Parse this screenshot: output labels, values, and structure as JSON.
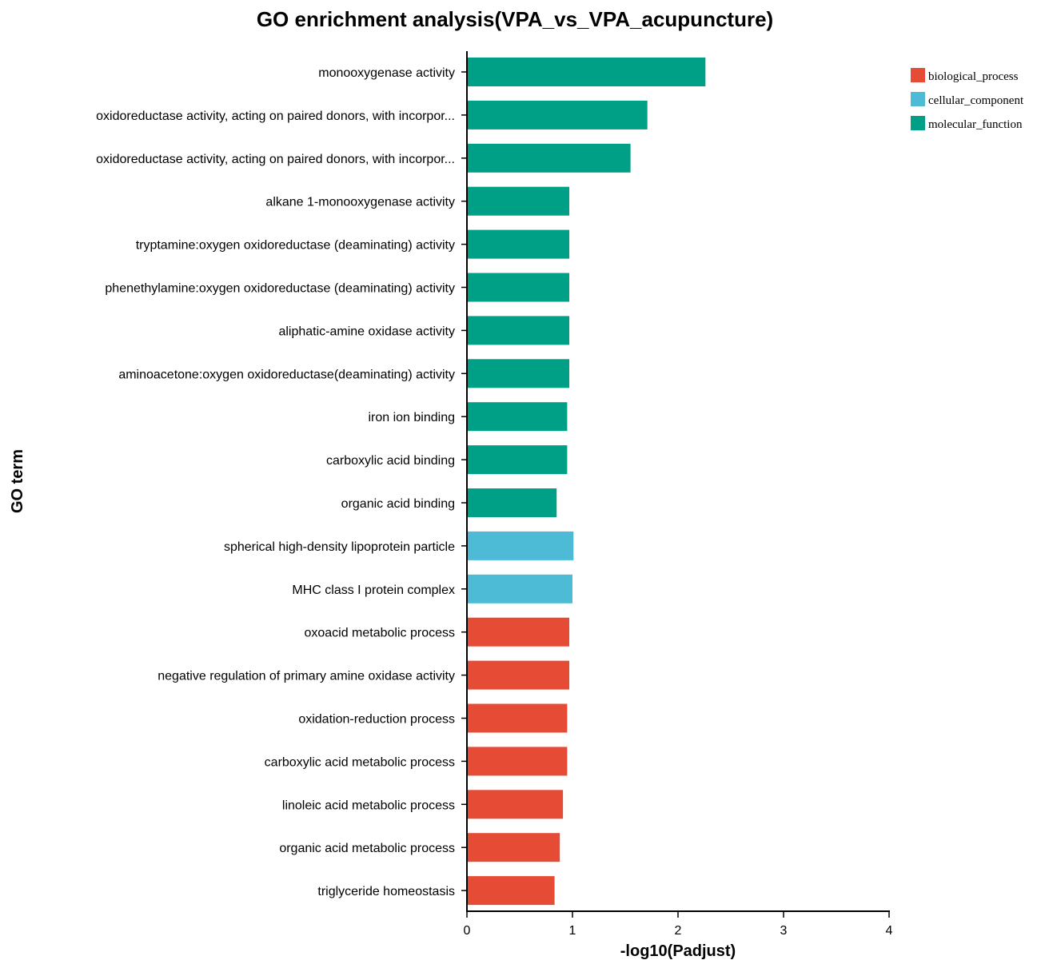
{
  "chart_data": {
    "type": "bar",
    "orientation": "horizontal",
    "title": "GO enrichment analysis(VPA_vs_VPA_acupuncture)",
    "xlabel": "-log10(Padjust)",
    "ylabel": "GO term",
    "xlim": [
      0,
      4
    ],
    "xticks": [
      "0",
      "1",
      "2",
      "3",
      "4"
    ],
    "grid": false,
    "legend_position": "top-right",
    "legend": [
      {
        "name": "biological_process",
        "color": "#e64b35"
      },
      {
        "name": "cellular_component",
        "color": "#4dbbd5"
      },
      {
        "name": "molecular_function",
        "color": "#00a087"
      }
    ],
    "categories": [
      "monooxygenase activity",
      "oxidoreductase activity, acting on paired donors, with incorpor...",
      "oxidoreductase activity, acting on paired donors, with incorpor...",
      "alkane 1-monooxygenase activity",
      "tryptamine:oxygen oxidoreductase (deaminating) activity",
      "phenethylamine:oxygen oxidoreductase (deaminating) activity",
      "aliphatic-amine oxidase activity",
      "aminoacetone:oxygen oxidoreductase(deaminating) activity",
      "iron ion binding",
      "carboxylic acid binding",
      "organic acid binding",
      "spherical high-density lipoprotein particle",
      "MHC class I protein complex",
      "oxoacid metabolic process",
      "negative regulation of primary amine oxidase activity",
      "oxidation-reduction process",
      "carboxylic acid metabolic process",
      "linoleic acid metabolic process",
      "organic acid metabolic process",
      "triglyceride homeostasis"
    ],
    "values": [
      2.26,
      1.71,
      1.55,
      0.97,
      0.97,
      0.97,
      0.97,
      0.97,
      0.95,
      0.95,
      0.85,
      1.01,
      1.0,
      0.97,
      0.97,
      0.95,
      0.95,
      0.91,
      0.88,
      0.83
    ],
    "groups": [
      "molecular_function",
      "molecular_function",
      "molecular_function",
      "molecular_function",
      "molecular_function",
      "molecular_function",
      "molecular_function",
      "molecular_function",
      "molecular_function",
      "molecular_function",
      "molecular_function",
      "cellular_component",
      "cellular_component",
      "biological_process",
      "biological_process",
      "biological_process",
      "biological_process",
      "biological_process",
      "biological_process",
      "biological_process"
    ]
  }
}
